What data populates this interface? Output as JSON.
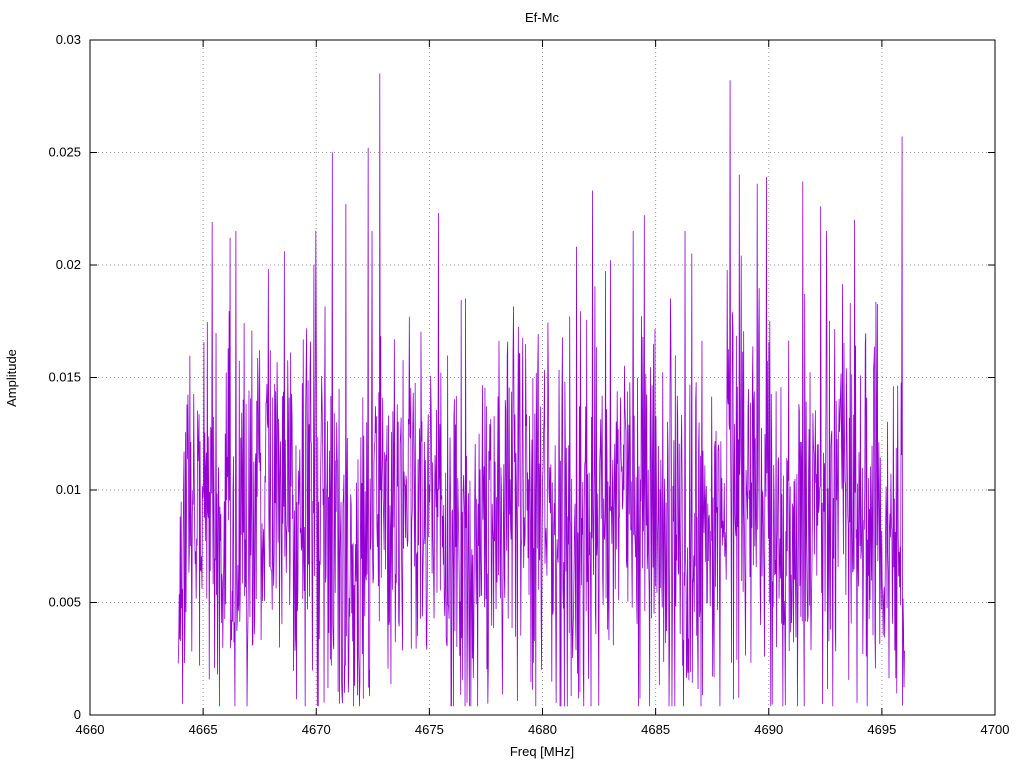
{
  "chart_data": {
    "type": "line",
    "title": "Ef-Mc",
    "xlabel": "Freq [MHz]",
    "ylabel": "Amplitude",
    "xlim": [
      4660,
      4700
    ],
    "ylim": [
      0,
      0.03
    ],
    "xticks": [
      4660,
      4665,
      4670,
      4675,
      4680,
      4685,
      4690,
      4695,
      4700
    ],
    "xtick_labels": [
      "4660",
      "4665",
      "4670",
      "4675",
      "4680",
      "4685",
      "4690",
      "4695",
      "4700"
    ],
    "yticks": [
      0,
      0.005,
      0.01,
      0.015,
      0.02,
      0.025,
      0.03
    ],
    "ytick_labels": [
      "0",
      "0.005",
      "0.01",
      "0.015",
      "0.02",
      "0.025",
      "0.03"
    ],
    "grid": true,
    "legend_position": "none",
    "series_color": "#9400d3",
    "grid_color": "#9a9a9a",
    "border_color": "#000000",
    "signal": {
      "description": "dense noisy amplitude spectrum between 4664 and 4696 MHz, baseline ~0.009 with spikes",
      "x_start": 4663.9,
      "x_end": 4696.0,
      "n_points": 1500,
      "seed": 1337,
      "base_mean": 0.009,
      "base_spread": 0.005,
      "noise_min": 0.0004,
      "noise_cap": 0.0215,
      "peaks": [
        {
          "x": 4665.4,
          "y": 0.0219
        },
        {
          "x": 4666.2,
          "y": 0.0212
        },
        {
          "x": 4668.6,
          "y": 0.0206
        },
        {
          "x": 4669.9,
          "y": 0.02
        },
        {
          "x": 4670.7,
          "y": 0.025
        },
        {
          "x": 4671.3,
          "y": 0.0227
        },
        {
          "x": 4672.3,
          "y": 0.0252
        },
        {
          "x": 4672.8,
          "y": 0.0285
        },
        {
          "x": 4675.4,
          "y": 0.0223
        },
        {
          "x": 4676.6,
          "y": 0.0185
        },
        {
          "x": 4681.5,
          "y": 0.0208
        },
        {
          "x": 4682.2,
          "y": 0.0233
        },
        {
          "x": 4683.0,
          "y": 0.0202
        },
        {
          "x": 4684.5,
          "y": 0.0222
        },
        {
          "x": 4686.3,
          "y": 0.0215
        },
        {
          "x": 4686.6,
          "y": 0.0205
        },
        {
          "x": 4688.3,
          "y": 0.0282
        },
        {
          "x": 4688.7,
          "y": 0.024
        },
        {
          "x": 4689.5,
          "y": 0.0236
        },
        {
          "x": 4689.9,
          "y": 0.0239
        },
        {
          "x": 4691.5,
          "y": 0.0237
        },
        {
          "x": 4692.3,
          "y": 0.0226
        },
        {
          "x": 4693.8,
          "y": 0.022
        },
        {
          "x": 4695.5,
          "y": 0.0146
        },
        {
          "x": 4695.9,
          "y": 0.0257
        }
      ]
    }
  }
}
